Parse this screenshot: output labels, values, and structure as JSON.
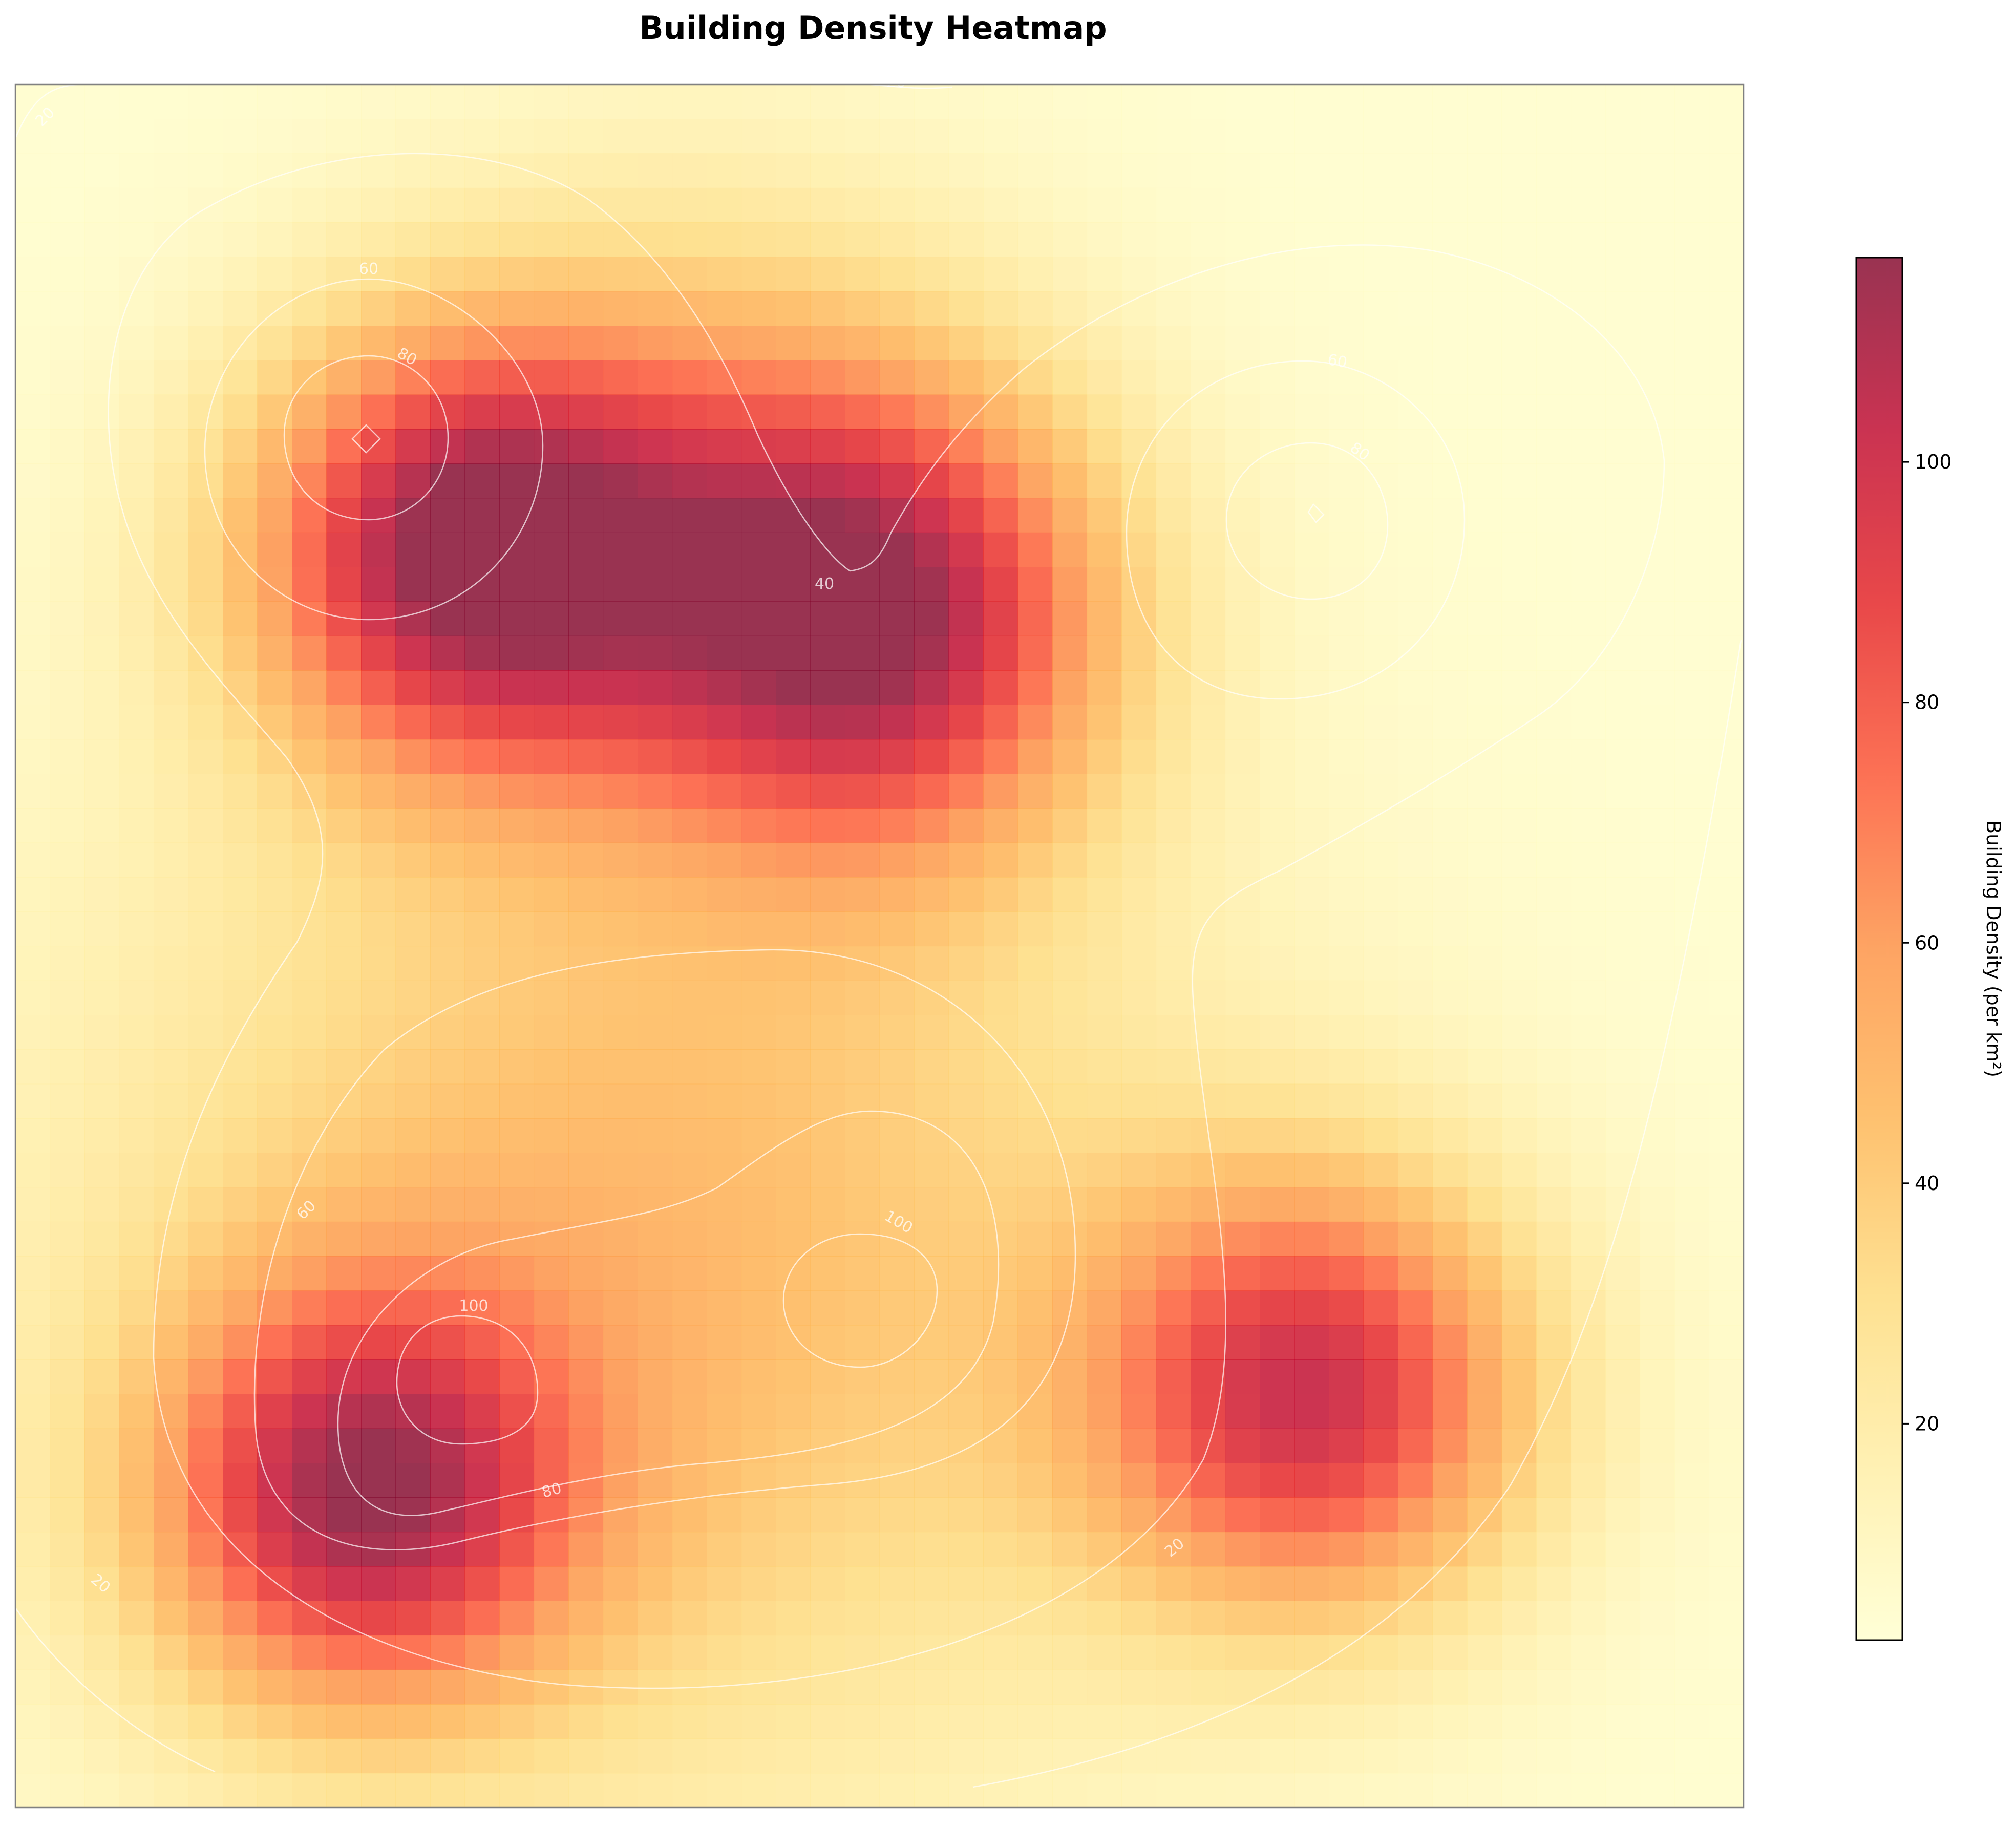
{
  "chart_data": {
    "type": "heatmap",
    "title": "Building Density Heatmap",
    "xlabel": "",
    "ylabel": "",
    "grid": false,
    "colorbar": {
      "label": "Building Density (per km²)",
      "ticks": [
        20,
        40,
        60,
        80,
        100
      ],
      "range": [
        2,
        117
      ],
      "colormap": "YlOrRd",
      "colors": [
        "#ffffcc",
        "#ffeda0",
        "#fed976",
        "#feb24c",
        "#fd8d3c",
        "#fc4e2a",
        "#e31a1c",
        "#bd0026",
        "#800026"
      ]
    },
    "grid_size": [
      50,
      50
    ],
    "density_model": {
      "background": 4,
      "hotspots": [
        {
          "x": 0.26,
          "y": 0.27,
          "peak": 100,
          "spread": 0.09
        },
        {
          "x": 0.5,
          "y": 0.31,
          "peak": 92,
          "spread": 0.095
        },
        {
          "x": 0.4,
          "y": 0.23,
          "peak": 35,
          "spread": 0.12
        },
        {
          "x": 0.75,
          "y": 0.76,
          "peak": 90,
          "spread": 0.09
        },
        {
          "x": 0.2,
          "y": 0.82,
          "peak": 88,
          "spread": 0.085
        },
        {
          "x": 0.36,
          "y": 0.68,
          "peak": 45,
          "spread": 0.22
        }
      ]
    },
    "contours": {
      "line_color": "#ffffff",
      "levels": [
        20,
        40,
        60,
        80,
        100
      ],
      "labels": [
        "20",
        "20",
        "20",
        "20",
        "40",
        "60",
        "60",
        "60",
        "80",
        "80",
        "80",
        "100",
        "100"
      ]
    }
  }
}
